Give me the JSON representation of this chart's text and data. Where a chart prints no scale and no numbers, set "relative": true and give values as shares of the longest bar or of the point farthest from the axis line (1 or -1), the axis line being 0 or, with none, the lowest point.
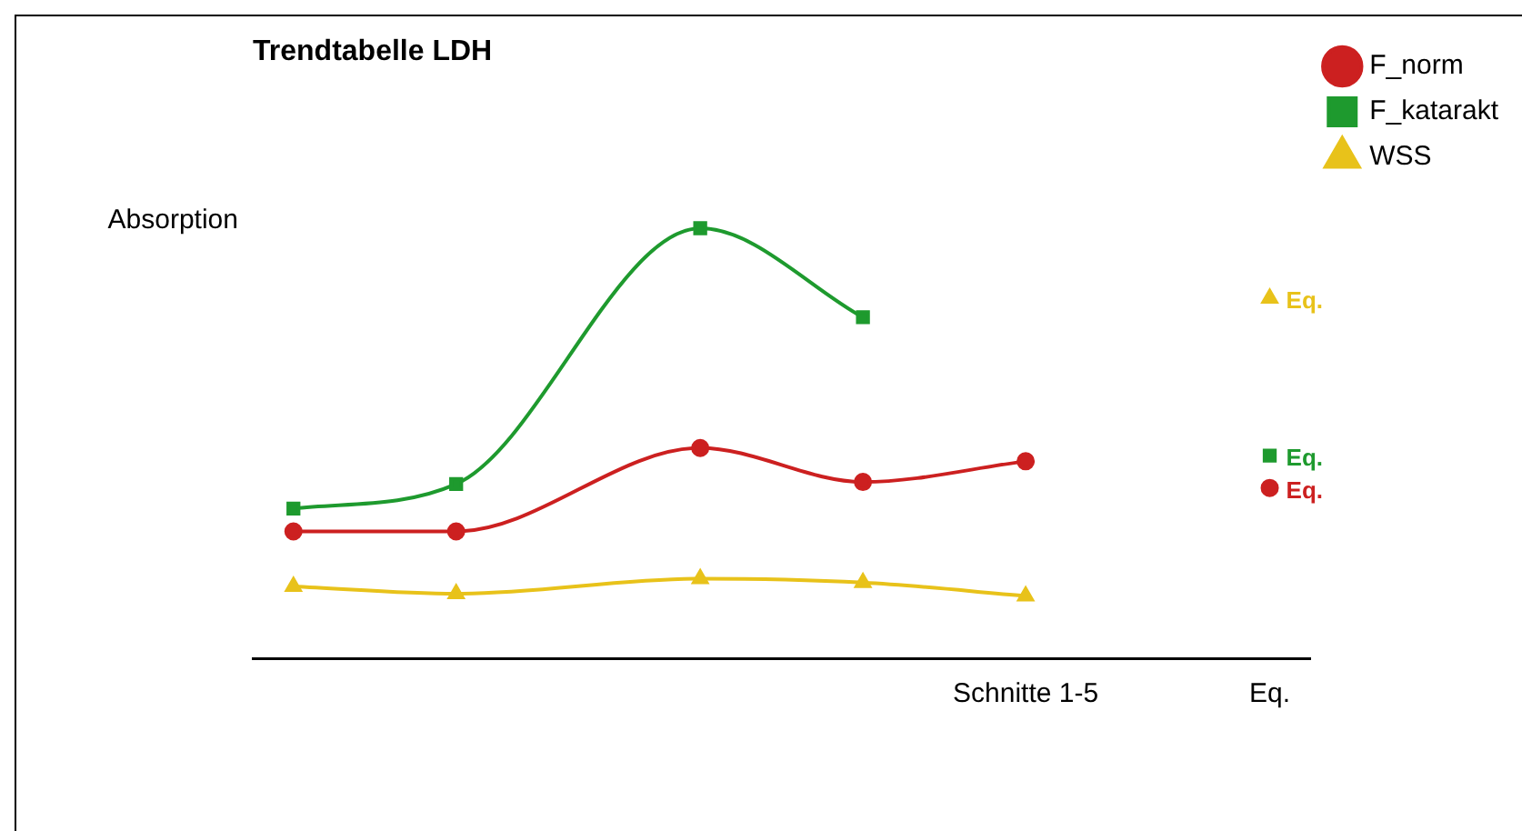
{
  "chart_data": {
    "type": "line",
    "title": "Trendtabelle LDH",
    "ylabel": "Absorption",
    "relative": true,
    "legend": "top right",
    "grid": false,
    "categories": [
      null,
      null,
      null,
      null,
      null,
      null,
      null,
      null,
      null,
      "Schnitte 1-5",
      null,
      null,
      "Eq."
    ],
    "series": [
      {
        "name": "F_norm",
        "color": "#cc2020",
        "marker": "circle",
        "values": [
          0.295,
          null,
          0.295,
          null,
          null,
          0.489,
          null,
          0.41,
          null,
          0.458,
          null,
          null,
          null
        ]
      },
      {
        "name": "F_katarakt",
        "color": "#1e9a2e",
        "marker": "square",
        "values": [
          0.348,
          null,
          0.405,
          null,
          null,
          1,
          null,
          0.793,
          null,
          null,
          null,
          null,
          null
        ]
      },
      {
        "name": "WSS",
        "color": "#e8c21a",
        "marker": "triangle",
        "values": [
          0.167,
          null,
          0.15,
          null,
          null,
          0.185,
          null,
          0.176,
          null,
          0.145,
          null,
          null,
          null
        ]
      },
      {
        "name": "Eq.",
        "type": "scatter",
        "color": "#cc2020",
        "marker": "circle",
        "values": [
          null,
          null,
          null,
          null,
          null,
          null,
          null,
          null,
          null,
          null,
          null,
          null,
          0.396
        ]
      },
      {
        "name": "Eq.",
        "type": "scatter",
        "color": "#1e9a2e",
        "marker": "square",
        "values": [
          null,
          null,
          null,
          null,
          null,
          null,
          null,
          null,
          null,
          null,
          null,
          null,
          0.471
        ]
      },
      {
        "name": "Eq.",
        "type": "scatter",
        "color": "#e8c21a",
        "marker": "triangle",
        "values": [
          null,
          null,
          null,
          null,
          null,
          null,
          null,
          null,
          null,
          null,
          null,
          null,
          0.837
        ]
      }
    ]
  }
}
